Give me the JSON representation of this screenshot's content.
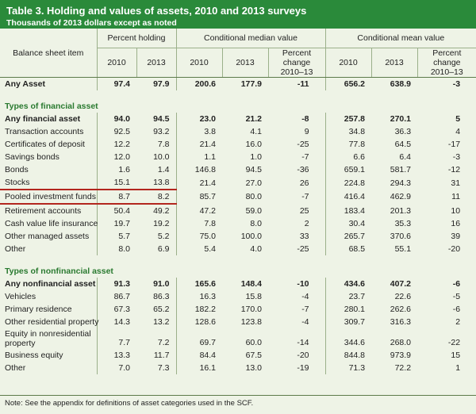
{
  "title": "Table 3. Holding and values of assets, 2010 and 2013 surveys",
  "subtitle": "Thousands of 2013 dollars except as noted",
  "headers": {
    "item": "Balance sheet item",
    "group1": "Percent holding",
    "group2": "Conditional median value",
    "group3": "Conditional mean value",
    "y2010": "2010",
    "y2013": "2013",
    "pctchange_line1": "Percent change",
    "pctchange_line2": "2010–13"
  },
  "rows": [
    {
      "type": "bold",
      "label": "Any Asset",
      "v": [
        "97.4",
        "97.9",
        "200.6",
        "177.9",
        "-11",
        "656.2",
        "638.9",
        "-3"
      ]
    },
    {
      "type": "section",
      "label": "Types of financial asset"
    },
    {
      "type": "bold",
      "label": "Any financial asset",
      "v": [
        "94.0",
        "94.5",
        "23.0",
        "21.2",
        "-8",
        "257.8",
        "270.1",
        "5"
      ]
    },
    {
      "type": "row",
      "label": "Transaction accounts",
      "v": [
        "92.5",
        "93.2",
        "3.8",
        "4.1",
        "9",
        "34.8",
        "36.3",
        "4"
      ]
    },
    {
      "type": "row",
      "label": "Certificates of deposit",
      "v": [
        "12.2",
        "7.8",
        "21.4",
        "16.0",
        "-25",
        "77.8",
        "64.5",
        "-17"
      ]
    },
    {
      "type": "row",
      "label": "Savings bonds",
      "v": [
        "12.0",
        "10.0",
        "1.1",
        "1.0",
        "-7",
        "6.6",
        "6.4",
        "-3"
      ]
    },
    {
      "type": "row",
      "label": "Bonds",
      "v": [
        "1.6",
        "1.4",
        "146.8",
        "94.5",
        "-36",
        "659.1",
        "581.7",
        "-12"
      ]
    },
    {
      "type": "row",
      "label": "Stocks",
      "v": [
        "15.1",
        "13.8",
        "21.4",
        "27.0",
        "26",
        "224.8",
        "294.3",
        "31"
      ]
    },
    {
      "type": "highlight",
      "label": "Pooled investment funds",
      "v": [
        "8.7",
        "8.2",
        "85.7",
        "80.0",
        "-7",
        "416.4",
        "462.9",
        "11"
      ]
    },
    {
      "type": "row",
      "label": "Retirement accounts",
      "v": [
        "50.4",
        "49.2",
        "47.2",
        "59.0",
        "25",
        "183.4",
        "201.3",
        "10"
      ]
    },
    {
      "type": "row",
      "label": "Cash value life insurance",
      "v": [
        "19.7",
        "19.2",
        "7.8",
        "8.0",
        "2",
        "30.4",
        "35.3",
        "16"
      ]
    },
    {
      "type": "row",
      "label": "Other managed assets",
      "v": [
        "5.7",
        "5.2",
        "75.0",
        "100.0",
        "33",
        "265.7",
        "370.6",
        "39"
      ]
    },
    {
      "type": "row",
      "label": "Other",
      "v": [
        "8.0",
        "6.9",
        "5.4",
        "4.0",
        "-25",
        "68.5",
        "55.1",
        "-20"
      ]
    },
    {
      "type": "section",
      "label": "Types of nonfinancial asset"
    },
    {
      "type": "bold",
      "label": "Any nonfinancial asset",
      "v": [
        "91.3",
        "91.0",
        "165.6",
        "148.4",
        "-10",
        "434.6",
        "407.2",
        "-6"
      ]
    },
    {
      "type": "row",
      "label": "Vehicles",
      "v": [
        "86.7",
        "86.3",
        "16.3",
        "15.8",
        "-4",
        "23.7",
        "22.6",
        "-5"
      ]
    },
    {
      "type": "row",
      "label": "Primary residence",
      "v": [
        "67.3",
        "65.2",
        "182.2",
        "170.0",
        "-7",
        "280.1",
        "262.6",
        "-6"
      ]
    },
    {
      "type": "row",
      "label": "Other residential property",
      "v": [
        "14.3",
        "13.2",
        "128.6",
        "123.8",
        "-4",
        "309.7",
        "316.3",
        "2"
      ]
    },
    {
      "type": "wrap",
      "label": "Equity in nonresidential property",
      "v": [
        "7.7",
        "7.2",
        "69.7",
        "60.0",
        "-14",
        "344.6",
        "268.0",
        "-22"
      ]
    },
    {
      "type": "row",
      "label": "Business equity",
      "v": [
        "13.3",
        "11.7",
        "84.4",
        "67.5",
        "-20",
        "844.8",
        "973.9",
        "15"
      ]
    },
    {
      "type": "row",
      "label": "Other",
      "v": [
        "7.0",
        "7.3",
        "16.1",
        "13.0",
        "-19",
        "71.3",
        "72.2",
        "1"
      ]
    }
  ],
  "note": "Note: See the appendix for definitions of asset categories used in the SCF.",
  "colors": {
    "header_bg": "#2a8a3a",
    "body_bg": "#eef3e6",
    "section_text": "#2a7a30",
    "highlight": "#b3261e"
  }
}
